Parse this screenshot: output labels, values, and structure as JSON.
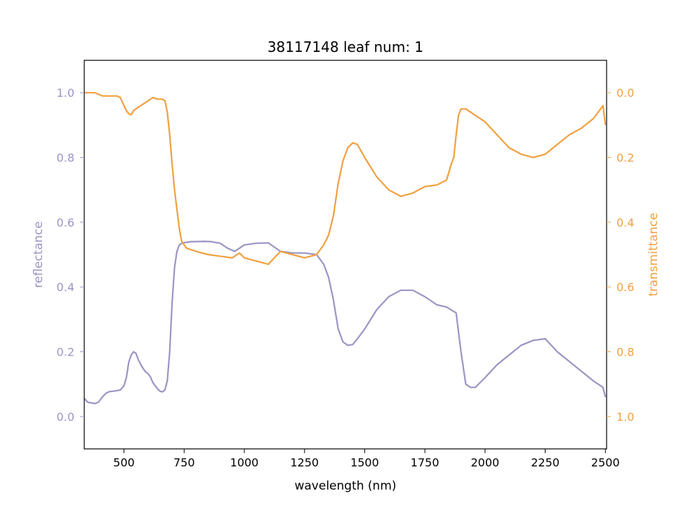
{
  "chart_data": {
    "type": "line",
    "title": "38117148 leaf num: 1",
    "xlabel": "wavelength (nm)",
    "y_left_label": "reflectance",
    "y_right_label": "transmittance",
    "xlim": [
      335,
      2505
    ],
    "ylim_left": [
      -0.1,
      1.1
    ],
    "ylim_right": [
      1.1,
      -0.1
    ],
    "y_right_inverted": true,
    "grid": false,
    "x_ticks": [
      500,
      750,
      1000,
      1250,
      1500,
      1750,
      2000,
      2250,
      2500
    ],
    "y_left_ticks": [
      0.0,
      0.2,
      0.4,
      0.6,
      0.8,
      1.0
    ],
    "y_left_tick_labels": [
      "0.0",
      "0.2",
      "0.4",
      "0.6",
      "0.8",
      "1.0"
    ],
    "y_right_ticks": [
      0.0,
      0.2,
      0.4,
      0.6,
      0.8,
      1.0
    ],
    "y_right_tick_labels": [
      "0.0",
      "0.2",
      "0.4",
      "0.6",
      "0.8",
      "1.0"
    ],
    "series": [
      {
        "axis": "left",
        "color": "#9b94c4",
        "x": [
          335,
          350,
          365,
          380,
          395,
          410,
          425,
          440,
          455,
          470,
          485,
          500,
          510,
          520,
          530,
          540,
          550,
          560,
          570,
          580,
          590,
          600,
          610,
          620,
          630,
          640,
          650,
          660,
          670,
          680,
          690,
          700,
          710,
          720,
          730,
          740,
          750,
          760,
          780,
          800,
          830,
          860,
          900,
          930,
          960,
          1000,
          1050,
          1100,
          1150,
          1200,
          1250,
          1300,
          1330,
          1350,
          1370,
          1390,
          1410,
          1430,
          1450,
          1470,
          1500,
          1550,
          1600,
          1650,
          1700,
          1750,
          1800,
          1840,
          1880,
          1900,
          1920,
          1940,
          1960,
          2000,
          2050,
          2100,
          2150,
          2200,
          2250,
          2300,
          2350,
          2400,
          2450,
          2490,
          2500
        ],
        "y": [
          0.056,
          0.044,
          0.042,
          0.04,
          0.045,
          0.06,
          0.072,
          0.077,
          0.078,
          0.08,
          0.082,
          0.095,
          0.12,
          0.168,
          0.19,
          0.2,
          0.195,
          0.175,
          0.16,
          0.148,
          0.138,
          0.132,
          0.122,
          0.105,
          0.095,
          0.085,
          0.078,
          0.076,
          0.082,
          0.11,
          0.2,
          0.35,
          0.46,
          0.51,
          0.53,
          0.535,
          0.537,
          0.538,
          0.54,
          0.54,
          0.541,
          0.54,
          0.535,
          0.52,
          0.51,
          0.53,
          0.535,
          0.536,
          0.51,
          0.505,
          0.505,
          0.5,
          0.47,
          0.43,
          0.36,
          0.27,
          0.23,
          0.22,
          0.222,
          0.24,
          0.27,
          0.33,
          0.37,
          0.39,
          0.39,
          0.37,
          0.345,
          0.338,
          0.32,
          0.2,
          0.1,
          0.09,
          0.09,
          0.12,
          0.16,
          0.19,
          0.22,
          0.235,
          0.24,
          0.2,
          0.17,
          0.14,
          0.11,
          0.09,
          0.06
        ]
      },
      {
        "axis": "right",
        "color": "#f0a040",
        "x": [
          335,
          350,
          380,
          410,
          440,
          470,
          485,
          500,
          510,
          520,
          530,
          540,
          550,
          560,
          570,
          580,
          600,
          620,
          640,
          660,
          670,
          680,
          690,
          700,
          710,
          720,
          730,
          740,
          760,
          800,
          850,
          900,
          950,
          980,
          1000,
          1050,
          1100,
          1150,
          1200,
          1250,
          1300,
          1330,
          1350,
          1370,
          1390,
          1410,
          1430,
          1450,
          1470,
          1500,
          1550,
          1600,
          1650,
          1700,
          1750,
          1800,
          1840,
          1860,
          1870,
          1880,
          1890,
          1900,
          1920,
          1950,
          2000,
          2050,
          2100,
          2150,
          2200,
          2250,
          2300,
          2350,
          2400,
          2450,
          2490,
          2500
        ],
        "y": [
          0.0,
          0.0,
          0.0,
          0.01,
          0.01,
          0.01,
          0.015,
          0.04,
          0.055,
          0.065,
          0.068,
          0.055,
          0.05,
          0.045,
          0.04,
          0.035,
          0.025,
          0.015,
          0.02,
          0.02,
          0.025,
          0.06,
          0.13,
          0.22,
          0.3,
          0.36,
          0.42,
          0.46,
          0.48,
          0.49,
          0.5,
          0.505,
          0.51,
          0.495,
          0.51,
          0.52,
          0.53,
          0.49,
          0.5,
          0.51,
          0.5,
          0.47,
          0.44,
          0.38,
          0.28,
          0.21,
          0.17,
          0.155,
          0.16,
          0.2,
          0.26,
          0.3,
          0.32,
          0.31,
          0.29,
          0.285,
          0.27,
          0.22,
          0.2,
          0.13,
          0.07,
          0.05,
          0.05,
          0.065,
          0.09,
          0.13,
          0.17,
          0.19,
          0.2,
          0.19,
          0.16,
          0.13,
          0.11,
          0.08,
          0.04,
          0.1
        ]
      }
    ]
  }
}
